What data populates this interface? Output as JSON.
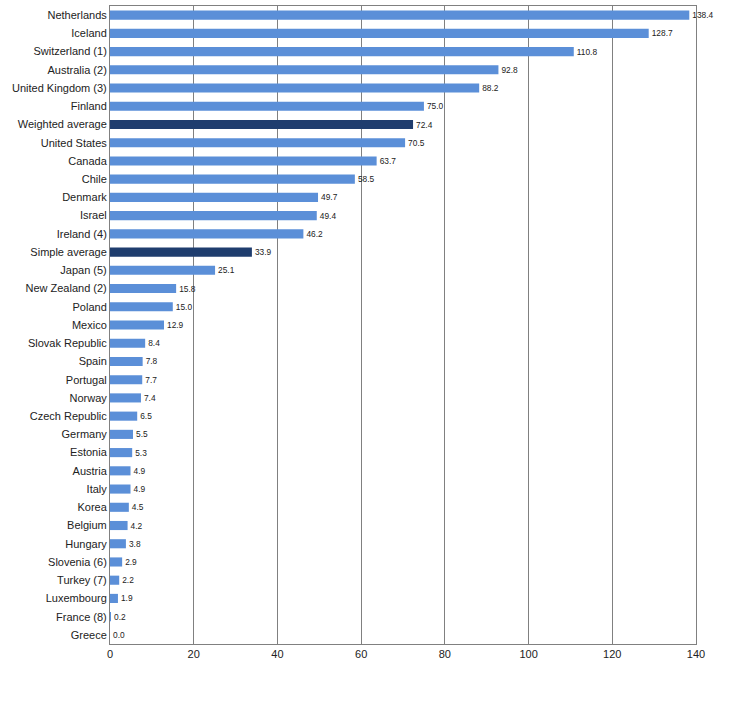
{
  "chart_data": {
    "type": "bar",
    "orientation": "horizontal",
    "categories": [
      "Netherlands",
      "Iceland",
      "Switzerland (1)",
      "Australia (2)",
      "United Kingdom (3)",
      "Finland",
      "Weighted average",
      "United States",
      "Canada",
      "Chile",
      "Denmark",
      "Israel",
      "Ireland (4)",
      "Simple average",
      "Japan (5)",
      "New Zealand (2)",
      "Poland",
      "Mexico",
      "Slovak Republic",
      "Spain",
      "Portugal",
      "Norway",
      "Czech Republic",
      "Germany",
      "Estonia",
      "Austria",
      "Italy",
      "Korea",
      "Belgium",
      "Hungary",
      "Slovenia (6)",
      "Turkey (7)",
      "Luxembourg",
      "France (8)",
      "Greece"
    ],
    "values": [
      138.4,
      128.7,
      110.8,
      92.8,
      88.2,
      75.0,
      72.4,
      70.5,
      63.7,
      58.5,
      49.7,
      49.4,
      46.2,
      33.9,
      25.1,
      15.8,
      15.0,
      12.9,
      8.4,
      7.8,
      7.7,
      7.4,
      6.5,
      5.5,
      5.3,
      4.9,
      4.9,
      4.5,
      4.2,
      3.8,
      2.9,
      2.2,
      1.9,
      0.2,
      0.0
    ],
    "value_labels": [
      "138.4",
      "128.7",
      "110.8",
      "92.8",
      "88.2",
      "75.0",
      "72.4",
      "70.5",
      "63.7",
      "58.5",
      "49.7",
      "49.4",
      "46.2",
      "33.9",
      "25.1",
      "15.8",
      "15.0",
      "12.9",
      "8.4",
      "7.8",
      "7.7",
      "7.4",
      "6.5",
      "5.5",
      "5.3",
      "4.9",
      "4.9",
      "4.5",
      "4.2",
      "3.8",
      "2.9",
      "2.2",
      "1.9",
      "0.2",
      "0.0"
    ],
    "colors": [
      "#5b8fd8",
      "#5b8fd8",
      "#5b8fd8",
      "#5b8fd8",
      "#5b8fd8",
      "#5b8fd8",
      "#1f3d6e",
      "#5b8fd8",
      "#5b8fd8",
      "#5b8fd8",
      "#5b8fd8",
      "#5b8fd8",
      "#5b8fd8",
      "#1f3d6e",
      "#5b8fd8",
      "#5b8fd8",
      "#5b8fd8",
      "#5b8fd8",
      "#5b8fd8",
      "#5b8fd8",
      "#5b8fd8",
      "#5b8fd8",
      "#5b8fd8",
      "#5b8fd8",
      "#5b8fd8",
      "#5b8fd8",
      "#5b8fd8",
      "#5b8fd8",
      "#5b8fd8",
      "#5b8fd8",
      "#5b8fd8",
      "#5b8fd8",
      "#5b8fd8",
      "#5b8fd8",
      "#5b8fd8"
    ],
    "xlim": [
      0,
      140
    ],
    "xticks": [
      0,
      20,
      40,
      60,
      80,
      100,
      120,
      140
    ],
    "grid": true,
    "data_labels": true
  }
}
